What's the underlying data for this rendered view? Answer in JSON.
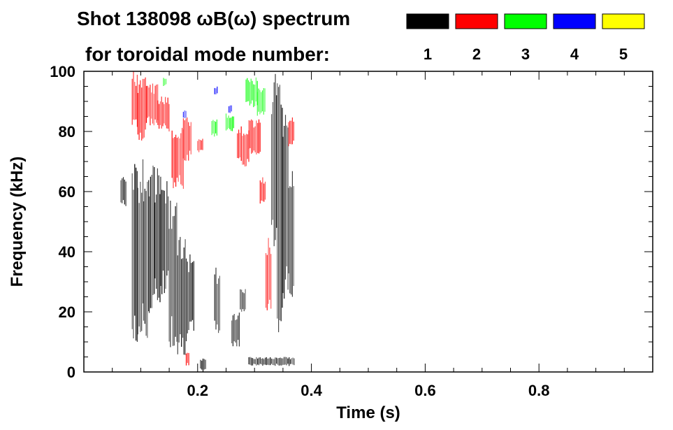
{
  "chart_data": {
    "type": "heatmap",
    "title_line1": "Shot 138098 ωB(ω) spectrum",
    "title_line2": "for toroidal mode number:",
    "xlabel": "Time (s)",
    "ylabel": "Frequency (kHz)",
    "xlim": [
      0.0,
      1.0
    ],
    "ylim": [
      0,
      100
    ],
    "xticks": [
      0.2,
      0.4,
      0.6,
      0.8
    ],
    "xtick_labels": [
      "0.2",
      "0.4",
      "0.6",
      "0.8"
    ],
    "yticks": [
      0,
      20,
      40,
      60,
      80,
      100
    ],
    "ytick_labels": [
      "0",
      "20",
      "40",
      "60",
      "80",
      "100"
    ],
    "legend": {
      "placement": "top-right",
      "entries": [
        {
          "label": "1",
          "color": "#000000"
        },
        {
          "label": "2",
          "color": "#ff0000"
        },
        {
          "label": "3",
          "color": "#00ff00"
        },
        {
          "label": "4",
          "color": "#0000ff"
        },
        {
          "label": "5",
          "color": "#ffff00"
        }
      ]
    },
    "mode_colors": {
      "1": "#000000",
      "2": "#ff0000",
      "3": "#00ff00",
      "4": "#0000ff",
      "5": "#ffff00"
    },
    "regions": [
      {
        "mode": 1,
        "t0": 0.065,
        "t1": 0.075,
        "f0": 55,
        "f1": 65
      },
      {
        "mode": 1,
        "t0": 0.085,
        "t1": 0.095,
        "f0": 3,
        "f1": 70
      },
      {
        "mode": 1,
        "t0": 0.095,
        "t1": 0.105,
        "f0": 8,
        "f1": 72
      },
      {
        "mode": 1,
        "t0": 0.105,
        "t1": 0.115,
        "f0": 10,
        "f1": 70
      },
      {
        "mode": 1,
        "t0": 0.115,
        "t1": 0.125,
        "f0": 15,
        "f1": 72
      },
      {
        "mode": 1,
        "t0": 0.125,
        "t1": 0.135,
        "f0": 20,
        "f1": 68
      },
      {
        "mode": 1,
        "t0": 0.135,
        "t1": 0.15,
        "f0": 25,
        "f1": 65
      },
      {
        "mode": 1,
        "t0": 0.15,
        "t1": 0.165,
        "f0": 8,
        "f1": 58
      },
      {
        "mode": 1,
        "t0": 0.165,
        "t1": 0.18,
        "f0": 5,
        "f1": 45
      },
      {
        "mode": 1,
        "t0": 0.18,
        "t1": 0.195,
        "f0": 10,
        "f1": 40
      },
      {
        "mode": 1,
        "t0": 0.205,
        "t1": 0.215,
        "f0": 0,
        "f1": 5
      },
      {
        "mode": 1,
        "t0": 0.23,
        "t1": 0.24,
        "f0": 12,
        "f1": 35
      },
      {
        "mode": 1,
        "t0": 0.26,
        "t1": 0.275,
        "f0": 8,
        "f1": 20
      },
      {
        "mode": 1,
        "t0": 0.275,
        "t1": 0.285,
        "f0": 20,
        "f1": 28
      },
      {
        "mode": 1,
        "t0": 0.29,
        "t1": 0.37,
        "f0": 2,
        "f1": 5
      },
      {
        "mode": 1,
        "t0": 0.33,
        "t1": 0.34,
        "f0": 40,
        "f1": 100
      },
      {
        "mode": 1,
        "t0": 0.34,
        "t1": 0.35,
        "f0": 10,
        "f1": 98
      },
      {
        "mode": 1,
        "t0": 0.35,
        "t1": 0.36,
        "f0": 20,
        "f1": 90
      },
      {
        "mode": 1,
        "t0": 0.36,
        "t1": 0.37,
        "f0": 25,
        "f1": 70
      },
      {
        "mode": 2,
        "t0": 0.085,
        "t1": 0.095,
        "f0": 80,
        "f1": 100
      },
      {
        "mode": 2,
        "t0": 0.095,
        "t1": 0.11,
        "f0": 75,
        "f1": 98
      },
      {
        "mode": 2,
        "t0": 0.11,
        "t1": 0.13,
        "f0": 82,
        "f1": 96
      },
      {
        "mode": 2,
        "t0": 0.13,
        "t1": 0.15,
        "f0": 80,
        "f1": 92
      },
      {
        "mode": 2,
        "t0": 0.155,
        "t1": 0.175,
        "f0": 60,
        "f1": 82
      },
      {
        "mode": 2,
        "t0": 0.175,
        "t1": 0.19,
        "f0": 70,
        "f1": 85
      },
      {
        "mode": 2,
        "t0": 0.2,
        "t1": 0.21,
        "f0": 73,
        "f1": 78
      },
      {
        "mode": 2,
        "t0": 0.27,
        "t1": 0.29,
        "f0": 68,
        "f1": 82
      },
      {
        "mode": 2,
        "t0": 0.29,
        "t1": 0.31,
        "f0": 72,
        "f1": 84
      },
      {
        "mode": 2,
        "t0": 0.32,
        "t1": 0.33,
        "f0": 20,
        "f1": 45
      },
      {
        "mode": 2,
        "t0": 0.31,
        "t1": 0.32,
        "f0": 55,
        "f1": 65
      },
      {
        "mode": 2,
        "t0": 0.36,
        "t1": 0.37,
        "f0": 75,
        "f1": 85
      },
      {
        "mode": 2,
        "t0": 0.18,
        "t1": 0.185,
        "f0": 2,
        "f1": 7
      },
      {
        "mode": 3,
        "t0": 0.285,
        "t1": 0.305,
        "f0": 88,
        "f1": 98
      },
      {
        "mode": 3,
        "t0": 0.305,
        "t1": 0.32,
        "f0": 85,
        "f1": 95
      },
      {
        "mode": 3,
        "t0": 0.25,
        "t1": 0.265,
        "f0": 80,
        "f1": 86
      },
      {
        "mode": 3,
        "t0": 0.225,
        "t1": 0.235,
        "f0": 78,
        "f1": 84
      },
      {
        "mode": 3,
        "t0": 0.14,
        "t1": 0.145,
        "f0": 95,
        "f1": 98
      },
      {
        "mode": 4,
        "t0": 0.175,
        "t1": 0.18,
        "f0": 84,
        "f1": 87
      },
      {
        "mode": 4,
        "t0": 0.23,
        "t1": 0.235,
        "f0": 92,
        "f1": 95
      },
      {
        "mode": 4,
        "t0": 0.255,
        "t1": 0.26,
        "f0": 86,
        "f1": 89
      }
    ]
  }
}
